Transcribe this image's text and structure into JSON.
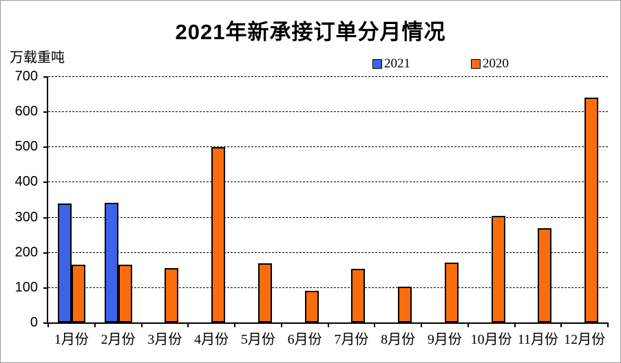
{
  "title": "2021年新承接订单分月情况",
  "y_axis_unit": "万载重吨",
  "chart_data": {
    "type": "bar",
    "title": "2021年新承接订单分月情况",
    "ylabel": "万载重吨",
    "xlabel": "",
    "categories": [
      "1月份",
      "2月份",
      "3月份",
      "4月份",
      "5月份",
      "6月份",
      "7月份",
      "8月份",
      "9月份",
      "10月份",
      "11月份",
      "12月份"
    ],
    "series": [
      {
        "name": "2021",
        "color": "#3c63ea",
        "values": [
          338,
          341,
          null,
          null,
          null,
          null,
          null,
          null,
          null,
          null,
          null,
          null
        ]
      },
      {
        "name": "2020",
        "color": "#fb6d0c",
        "values": [
          165,
          165,
          155,
          498,
          168,
          89,
          152,
          101,
          171,
          303,
          268,
          640
        ]
      }
    ],
    "ylim": [
      0,
      700
    ],
    "yticks": [
      0,
      100,
      200,
      300,
      400,
      500,
      600,
      700
    ],
    "grid": "horizontal-dashed",
    "legend_position": "top",
    "bar_border_color": "#000000",
    "gridline_color": "#000000",
    "background_color": "#ffffff"
  }
}
